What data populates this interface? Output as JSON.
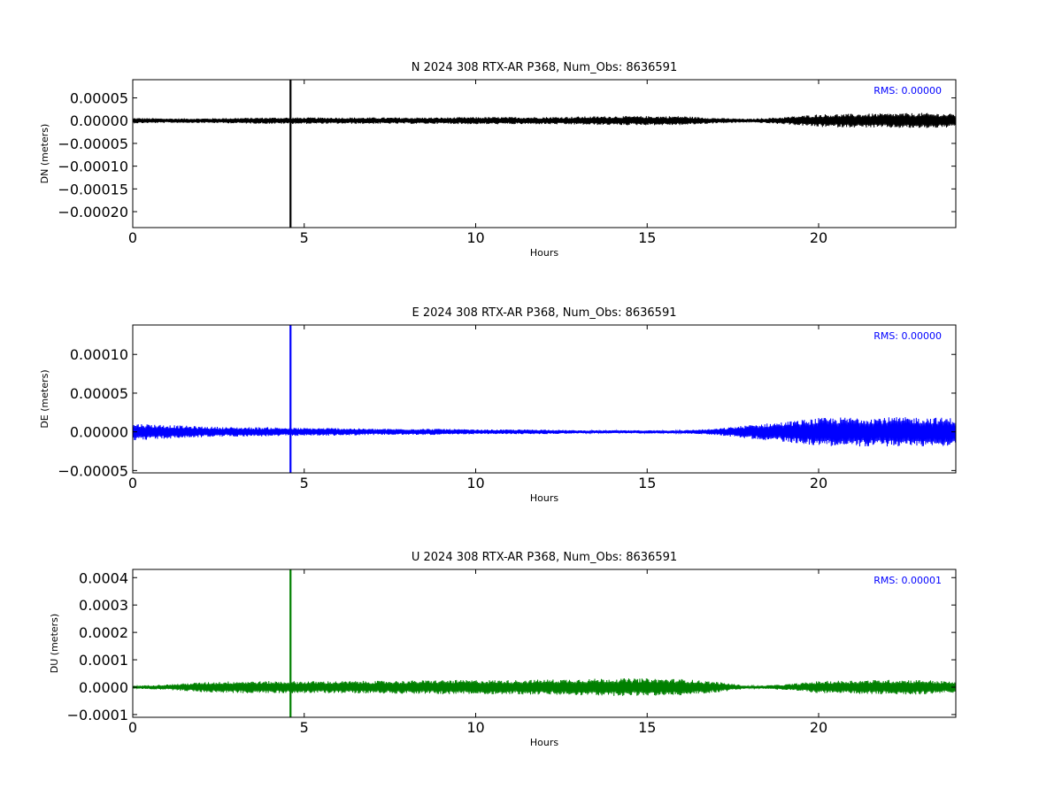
{
  "chart_data": [
    {
      "type": "line",
      "title": "N 2024 308 RTX-AR  P368, Num_Obs: 8636591",
      "xlabel": "Hours",
      "ylabel": "DN (meters)",
      "xlim": [
        0,
        24
      ],
      "ylim": [
        -0.000235,
        9e-05
      ],
      "x_ticks": [
        0,
        5,
        10,
        15,
        20
      ],
      "x_tick_labels": [
        "0",
        "5",
        "10",
        "15",
        "20"
      ],
      "y_ticks": [
        5e-05,
        0.0,
        -5e-05,
        -0.0001,
        -0.00015,
        -0.0002
      ],
      "y_tick_labels": [
        "0.00005",
        "0.00000",
        "−0.00005",
        "−0.00010",
        "−0.00015",
        "−0.00020"
      ],
      "rms_text": "RMS:  0.00000",
      "color": "#000000",
      "grid": false,
      "series": [
        {
          "x": [
            0,
            1,
            2,
            3,
            4,
            5,
            6,
            7,
            8,
            9,
            10,
            11,
            12,
            13,
            14,
            15,
            16,
            17,
            18,
            19,
            20,
            21,
            22,
            23,
            24
          ],
          "amplitude": [
            6e-06,
            5e-06,
            5e-06,
            6e-06,
            7e-06,
            7e-06,
            7e-06,
            7e-06,
            7e-06,
            7e-06,
            8e-06,
            8e-06,
            8e-06,
            9e-06,
            1e-05,
            1e-05,
            1e-05,
            6e-06,
            4e-06,
            8e-06,
            1.4e-05,
            1.5e-05,
            1.6e-05,
            1.7e-05,
            1.5e-05
          ],
          "spike": {
            "x": 4.6,
            "min": -0.000235,
            "max": 9e-05
          }
        }
      ]
    },
    {
      "type": "line",
      "title": "E 2024 308 RTX-AR  P368, Num_Obs: 8636591",
      "xlabel": "Hours",
      "ylabel": "DE (meters)",
      "xlim": [
        0,
        24
      ],
      "ylim": [
        -5.3e-05,
        0.000138
      ],
      "x_ticks": [
        0,
        5,
        10,
        15,
        20
      ],
      "x_tick_labels": [
        "0",
        "5",
        "10",
        "15",
        "20"
      ],
      "y_ticks": [
        0.0001,
        5e-05,
        0.0,
        -5e-05
      ],
      "y_tick_labels": [
        "0.00010",
        "0.00005",
        "0.00000",
        "−0.00005"
      ],
      "rms_text": "RMS:  0.00000",
      "color": "#0000ff",
      "grid": false,
      "series": [
        {
          "x": [
            0,
            1,
            2,
            3,
            4,
            5,
            6,
            7,
            8,
            9,
            10,
            11,
            12,
            13,
            14,
            15,
            16,
            17,
            18,
            19,
            20,
            21,
            22,
            23,
            24
          ],
          "amplitude": [
            1.1e-05,
            9e-06,
            7e-06,
            6e-06,
            6e-06,
            5e-06,
            5e-06,
            4e-06,
            4e-06,
            4e-06,
            3e-06,
            3e-06,
            3e-06,
            2e-06,
            2e-06,
            2e-06,
            2e-06,
            4e-06,
            9e-06,
            1.3e-05,
            1.8e-05,
            1.9e-05,
            1.9e-05,
            1.9e-05,
            1.8e-05
          ],
          "spike": {
            "x": 4.6,
            "min": -5.3e-05,
            "max": 0.000138
          }
        }
      ]
    },
    {
      "type": "line",
      "title": "U 2024 308 RTX-AR  P368, Num_Obs: 8636591",
      "xlabel": "Hours",
      "ylabel": "DU (meters)",
      "xlim": [
        0,
        24
      ],
      "ylim": [
        -0.00011,
        0.00043
      ],
      "x_ticks": [
        0,
        5,
        10,
        15,
        20
      ],
      "x_tick_labels": [
        "0",
        "5",
        "10",
        "15",
        "20"
      ],
      "y_ticks": [
        0.0004,
        0.0003,
        0.0002,
        0.0001,
        0.0,
        -0.0001
      ],
      "y_tick_labels": [
        "0.0004",
        "0.0003",
        "0.0002",
        "0.0001",
        "0.0000",
        "−0.0001"
      ],
      "rms_text": "RMS:  0.00001",
      "color": "#008000",
      "grid": false,
      "series": [
        {
          "x": [
            0,
            1,
            2,
            3,
            4,
            5,
            6,
            7,
            8,
            9,
            10,
            11,
            12,
            13,
            14,
            15,
            16,
            17,
            18,
            19,
            20,
            21,
            22,
            23,
            24
          ],
          "amplitude": [
            5e-06,
            1e-05,
            1.8e-05,
            2.2e-05,
            2.2e-05,
            2.2e-05,
            2.2e-05,
            2.3e-05,
            2.4e-05,
            2.6e-05,
            2.6e-05,
            2.6e-05,
            2.8e-05,
            3e-05,
            3.2e-05,
            3.2e-05,
            3e-05,
            2e-05,
            4e-06,
            1e-05,
            2.2e-05,
            2.5e-05,
            2.7e-05,
            2.7e-05,
            2e-05
          ],
          "spike": {
            "x": 4.6,
            "min": -0.00011,
            "max": 0.00043
          }
        }
      ]
    }
  ]
}
